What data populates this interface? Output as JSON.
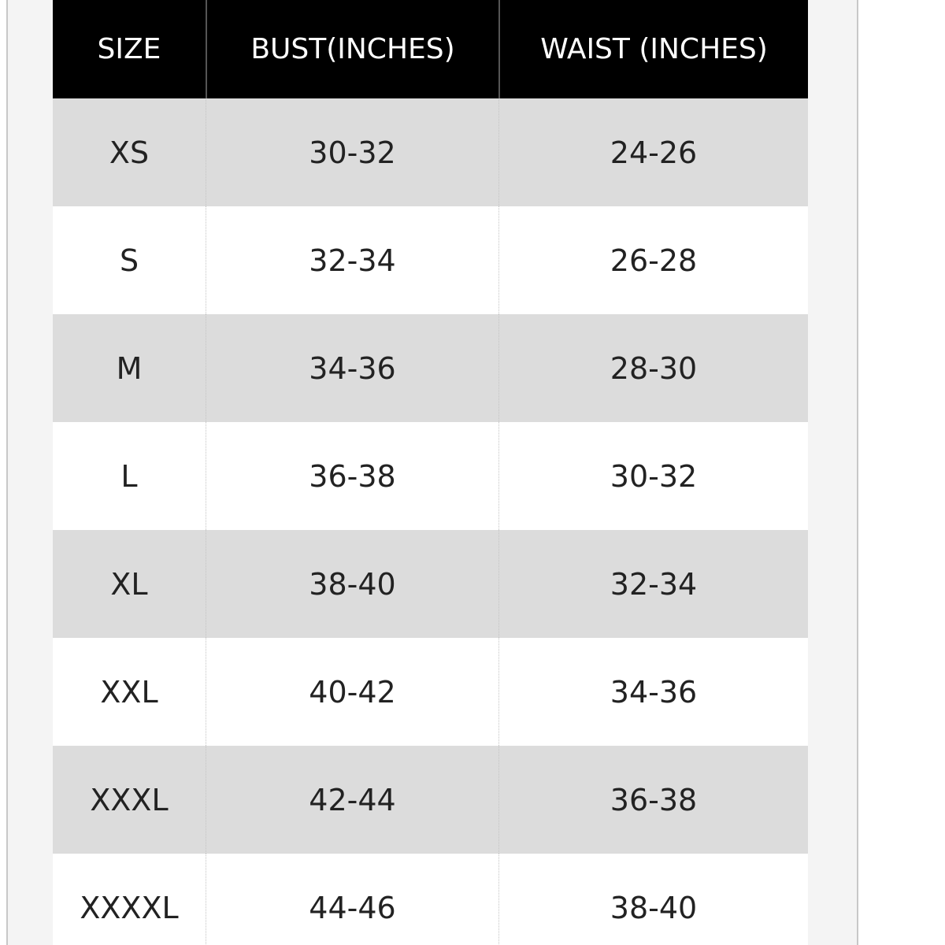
{
  "table": {
    "header": [
      "SIZE",
      "BUST(INCHES)",
      "WAIST (INCHES)"
    ],
    "rows": [
      [
        "XS",
        "30-32",
        "24-26"
      ],
      [
        "S",
        "32-34",
        "26-28"
      ],
      [
        "M",
        "34-36",
        "28-30"
      ],
      [
        "L",
        "36-38",
        "30-32"
      ],
      [
        "XL",
        "38-40",
        "32-34"
      ],
      [
        "XXL",
        "40-42",
        "34-36"
      ],
      [
        "XXXL",
        "42-44",
        "36-38"
      ],
      [
        "XXXXL",
        "44-46",
        "38-40"
      ]
    ]
  }
}
